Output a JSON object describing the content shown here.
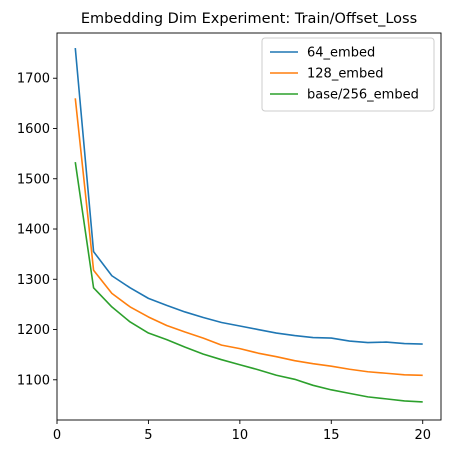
{
  "chart_data": {
    "type": "line",
    "title": "Embedding Dim Experiment: Train/Offset_Loss",
    "xlabel": "",
    "ylabel": "",
    "xlim": [
      0,
      21
    ],
    "ylim": [
      1020,
      1790
    ],
    "xticks": [
      0,
      5,
      10,
      15,
      20
    ],
    "yticks": [
      1100,
      1200,
      1300,
      1400,
      1500,
      1600,
      1700
    ],
    "grid": false,
    "legend_position": "top-right",
    "x": [
      1,
      2,
      3,
      4,
      5,
      6,
      7,
      8,
      9,
      10,
      11,
      12,
      13,
      14,
      15,
      16,
      17,
      18,
      19,
      20
    ],
    "series": [
      {
        "name": "64_embed",
        "color": "#1f77b4",
        "values": [
          1760,
          1355,
          1307,
          1283,
          1262,
          1248,
          1235,
          1224,
          1214,
          1207,
          1200,
          1193,
          1188,
          1184,
          1183,
          1177,
          1174,
          1175,
          1172,
          1171
        ]
      },
      {
        "name": "128_embed",
        "color": "#ff7f0e",
        "values": [
          1660,
          1318,
          1272,
          1245,
          1225,
          1208,
          1195,
          1183,
          1169,
          1162,
          1153,
          1146,
          1138,
          1132,
          1127,
          1121,
          1116,
          1113,
          1110,
          1109
        ]
      },
      {
        "name": "base/256_embed",
        "color": "#2ca02c",
        "values": [
          1533,
          1283,
          1245,
          1215,
          1193,
          1180,
          1165,
          1151,
          1140,
          1130,
          1120,
          1109,
          1101,
          1089,
          1080,
          1073,
          1066,
          1062,
          1058,
          1056
        ]
      }
    ]
  }
}
